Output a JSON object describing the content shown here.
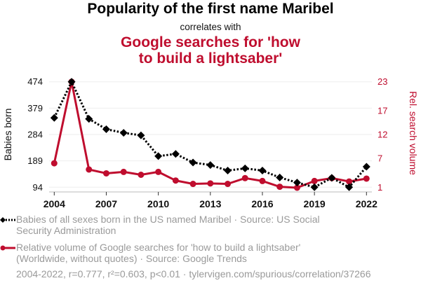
{
  "header": {
    "title": "Popularity of the first name Maribel",
    "subtitle": "correlates with",
    "title2_line1": "Google searches for 'how",
    "title2_line2": "to build a lightsaber'"
  },
  "colors": {
    "series1": "#000000",
    "series2": "#bf0d2e",
    "legend_text": "#9a9a9a",
    "gridline": "#eeeeee"
  },
  "legend": {
    "series1_line1": "Babies of all sexes born in the US named Maribel · Source: US Social",
    "series1_line2": "Security Administration",
    "series2_line1": "Relative volume of Google searches for 'how to build a lightsaber'",
    "series2_line2": "(Worldwide, without quotes) · Source: Google Trends"
  },
  "footer": {
    "text": "2004-2022, r=0.777, r²=0.603, p<0.01 · tylervigen.com/spurious/correlation/37266"
  },
  "chart_data": {
    "type": "line",
    "title": "Popularity of the first name Maribel correlates with Google searches for 'how to build a lightsaber'",
    "x": [
      2004,
      2005,
      2006,
      2007,
      2008,
      2009,
      2010,
      2011,
      2012,
      2013,
      2014,
      2015,
      2016,
      2017,
      2018,
      2019,
      2020,
      2021,
      2022
    ],
    "x_ticks": [
      "2004",
      "2007",
      "2010",
      "2013",
      "2016",
      "2019",
      "2022"
    ],
    "xlim": [
      2004,
      2022
    ],
    "series": [
      {
        "name": "Babies of all sexes born in the US named Maribel",
        "axis": "left",
        "style": "dotted-black-diamond",
        "values": [
          344,
          474,
          340,
          303,
          290,
          281,
          206,
          214,
          183,
          174,
          154,
          162,
          154,
          129,
          111,
          94,
          128,
          94,
          168
        ]
      },
      {
        "name": "Relative volume of Google searches for 'how to build a lightsaber'",
        "axis": "right",
        "style": "solid-red-circle",
        "values": [
          6.0,
          23.0,
          4.7,
          3.9,
          4.2,
          3.6,
          4.2,
          2.4,
          1.7,
          1.8,
          1.7,
          2.9,
          2.3,
          1.1,
          0.9,
          2.3,
          2.9,
          2.2,
          2.8
        ]
      }
    ],
    "ylabel_left": "Babies born",
    "ylim_left": [
      94,
      474
    ],
    "yticks_left": [
      "474",
      "379",
      "284",
      "189",
      "94"
    ],
    "yticks_left_values": [
      474,
      379,
      284,
      189,
      94
    ],
    "ylabel_right": "Rel. search volume",
    "ylim_right": [
      1,
      23
    ],
    "yticks_right": [
      "23",
      "17",
      "12",
      "7",
      "1"
    ],
    "yticks_right_values": [
      23,
      17,
      12,
      7,
      1
    ],
    "grid": true,
    "legend_placement": "bottom"
  }
}
